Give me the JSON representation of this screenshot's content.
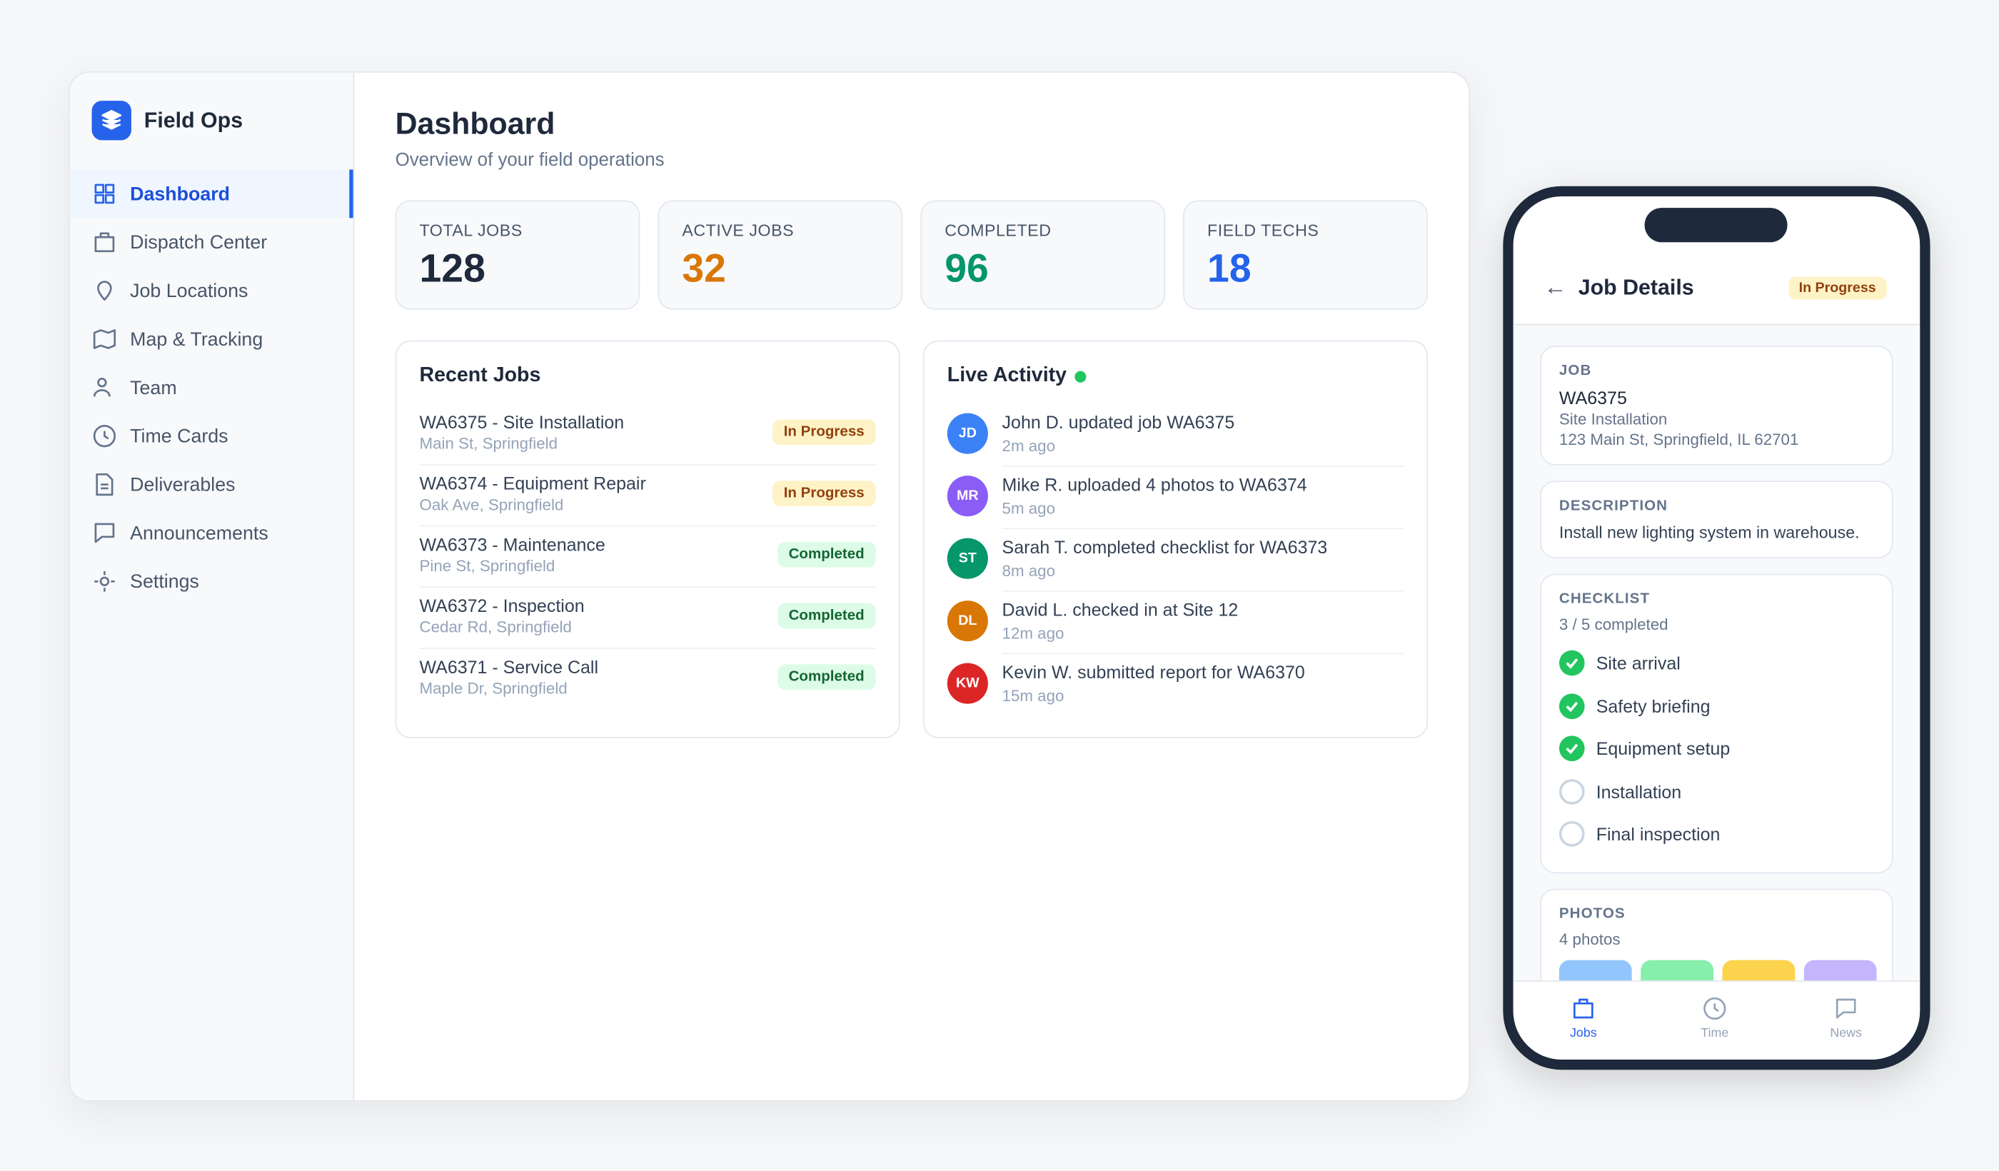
{
  "app": {
    "name": "Field Ops"
  },
  "nav": [
    "Dashboard",
    "Dispatch Center",
    "Job Locations",
    "Map & Tracking",
    "Team",
    "Time Cards",
    "Deliverables",
    "Announcements",
    "Settings"
  ],
  "header": {
    "title": "Dashboard",
    "subtitle": "Overview of your field operations"
  },
  "stats": [
    {
      "label": "TOTAL JOBS",
      "value": 128,
      "color": "#1e293b"
    },
    {
      "label": "ACTIVE JOBS",
      "value": 32,
      "color": "#d97706"
    },
    {
      "label": "COMPLETED",
      "value": 96,
      "color": "#059669"
    },
    {
      "label": "FIELD TECHS",
      "value": 18,
      "color": "#2563eb"
    }
  ],
  "recent_jobs": {
    "title": "Recent Jobs",
    "rows": [
      {
        "title": "WA6375 - Site Installation",
        "location": "Main St, Springfield",
        "status": "In Progress",
        "status_color": "#92400e",
        "status_bg": "#fef3c7"
      },
      {
        "title": "WA6374 - Equipment Repair",
        "location": "Oak Ave, Springfield",
        "status": "In Progress",
        "status_color": "#92400e",
        "status_bg": "#fef3c7"
      },
      {
        "title": "WA6373 - Maintenance",
        "location": "Pine St, Springfield",
        "status": "Completed",
        "status_color": "#166534",
        "status_bg": "#dcfce7"
      },
      {
        "title": "WA6372 - Inspection",
        "location": "Cedar Rd, Springfield",
        "status": "Completed",
        "status_color": "#166534",
        "status_bg": "#dcfce7"
      },
      {
        "title": "WA6371 - Service Call",
        "location": "Maple Dr, Springfield",
        "status": "Completed",
        "status_color": "#166534",
        "status_bg": "#dcfce7"
      }
    ]
  },
  "activity": {
    "title": "Live Activity",
    "items": [
      {
        "initials": "JD",
        "text": "John D. updated job WA6375",
        "time": "2m ago",
        "color": "#3b82f6"
      },
      {
        "initials": "MR",
        "text": "Mike R. uploaded 4 photos to WA6374",
        "time": "5m ago",
        "color": "#8b5cf6"
      },
      {
        "initials": "ST",
        "text": "Sarah T. completed checklist for WA6373",
        "time": "8m ago",
        "color": "#059669"
      },
      {
        "initials": "DL",
        "text": "David L. checked in at Site 12",
        "time": "12m ago",
        "color": "#d97706"
      },
      {
        "initials": "KW",
        "text": "Kevin W. submitted report for WA6370",
        "time": "15m ago",
        "color": "#dc2626"
      }
    ]
  },
  "mobile": {
    "title": "Job Details",
    "status": "In Progress",
    "job": {
      "label": "JOB",
      "id": "WA6375",
      "type": "Site Installation",
      "address": "123 Main St, Springfield, IL 62701"
    },
    "description": {
      "label": "DESCRIPTION",
      "text": "Install new lighting system in warehouse."
    },
    "checklist": {
      "label": "CHECKLIST",
      "progress": "3 / 5 completed",
      "items": [
        {
          "text": "Site arrival",
          "done": true
        },
        {
          "text": "Safety briefing",
          "done": true
        },
        {
          "text": "Equipment setup",
          "done": true
        },
        {
          "text": "Installation",
          "done": false
        },
        {
          "text": "Final inspection",
          "done": false
        }
      ]
    },
    "photos": {
      "label": "PHOTOS",
      "count": "4 photos",
      "colors": [
        "#93c5fd",
        "#86efac",
        "#fcd34d",
        "#c4b5fd"
      ]
    },
    "tabs": [
      "Jobs",
      "Time",
      "News"
    ]
  }
}
